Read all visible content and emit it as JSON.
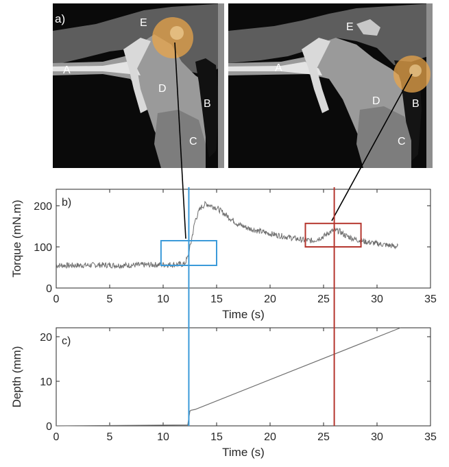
{
  "images": [
    {
      "panel_label": "a)",
      "structure_labels": [
        "A",
        "B",
        "C",
        "D",
        "E"
      ],
      "marker_color": "#e8a44a"
    },
    {
      "panel_label": "",
      "structure_labels": [
        "A",
        "B",
        "C",
        "D",
        "E"
      ],
      "marker_color": "#e8a44a"
    }
  ],
  "colors": {
    "blue_marker": "#3a9ad9",
    "red_marker": "#b5362e",
    "trace": "#6e6e6e"
  },
  "chart_data": [
    {
      "type": "line",
      "panel_label": "b)",
      "xlabel": "Time (s)",
      "ylabel": "Torque (mN.m)",
      "xlim": [
        0,
        35
      ],
      "ylim": [
        0,
        240
      ],
      "xticks": [
        "0",
        "5",
        "10",
        "15",
        "20",
        "25",
        "30",
        "35"
      ],
      "yticks": [
        "0",
        "100",
        "200"
      ],
      "grid": false,
      "series": [
        {
          "x": [
            0,
            2,
            4,
            6,
            8,
            10,
            11,
            12,
            12.3,
            12.6,
            13,
            13.5,
            14,
            14.5,
            15,
            16,
            17,
            18,
            19,
            20,
            21,
            22,
            23,
            24,
            25,
            25.5,
            26,
            26.5,
            27,
            28,
            29,
            30,
            31,
            32
          ],
          "values": [
            55,
            55,
            56,
            55,
            56,
            57,
            57,
            58,
            75,
            110,
            165,
            195,
            205,
            200,
            195,
            175,
            155,
            145,
            138,
            132,
            127,
            122,
            117,
            115,
            125,
            135,
            140,
            138,
            128,
            118,
            112,
            108,
            104,
            100
          ]
        }
      ],
      "annotations": [
        {
          "kind": "rectangle",
          "color": "blue",
          "x": [
            9.8,
            15
          ],
          "y": [
            55,
            115
          ]
        },
        {
          "kind": "rectangle",
          "color": "red",
          "x": [
            23.3,
            28.5
          ],
          "y": [
            100,
            157
          ]
        },
        {
          "kind": "vline",
          "color": "blue",
          "x": 12.4
        },
        {
          "kind": "vline",
          "color": "red",
          "x": 26
        }
      ]
    },
    {
      "type": "line",
      "panel_label": "c)",
      "xlabel": "Time (s)",
      "ylabel": "Depth (mm)",
      "xlim": [
        0,
        35
      ],
      "ylim": [
        0,
        22
      ],
      "xticks": [
        "0",
        "5",
        "10",
        "15",
        "20",
        "25",
        "30",
        "35"
      ],
      "yticks": [
        "0",
        "10",
        "20"
      ],
      "grid": false,
      "series": [
        {
          "x": [
            0,
            12.3,
            12.5,
            12.6,
            13,
            32.2
          ],
          "values": [
            0,
            0.2,
            3.3,
            3.5,
            3.7,
            22
          ]
        }
      ],
      "annotations": [
        {
          "kind": "vline",
          "color": "blue",
          "x": 12.4
        },
        {
          "kind": "vline",
          "color": "red",
          "x": 26
        }
      ]
    }
  ]
}
